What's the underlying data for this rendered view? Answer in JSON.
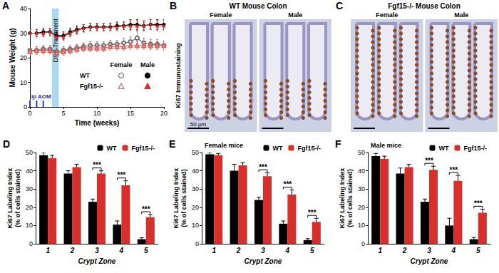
{
  "chart_data": [
    {
      "panel": "A",
      "type": "line",
      "xlabel": "Time (weeks)",
      "ylabel": "Mouse Weight (g)",
      "x": [
        0,
        1,
        2,
        3,
        4,
        5,
        6,
        7,
        8,
        9,
        10,
        11,
        12,
        13,
        14,
        15,
        16,
        17,
        18,
        19,
        20
      ],
      "xlim": [
        0,
        20
      ],
      "xticks": [
        0,
        5,
        10,
        15,
        20
      ],
      "ylim": [
        0,
        40
      ],
      "yticks": [
        0,
        10,
        20,
        30,
        40
      ],
      "grid": false,
      "legend_columns": [
        "Female",
        "Male"
      ],
      "legend_rows": [
        "WT",
        "Fgf15-/-"
      ],
      "series": [
        {
          "genotype": "WT",
          "sex": "Female",
          "color": "#6e6e6e",
          "marker": "open_circle",
          "values": [
            23,
            23,
            23.5,
            23.5,
            22.5,
            23,
            23.5,
            24,
            24.5,
            25,
            25,
            25,
            25.5,
            25.5,
            26,
            26.5,
            28,
            26,
            25.5,
            25.5,
            25
          ],
          "errors": [
            1.5,
            1.5,
            1.5,
            1.5,
            1.5,
            1.5,
            1.5,
            1.5,
            1.5,
            1.5,
            1.5,
            1.5,
            1.5,
            1.5,
            2,
            2,
            3,
            2,
            2,
            2,
            2
          ]
        },
        {
          "genotype": "WT",
          "sex": "Male",
          "color": "#000000",
          "marker": "circle",
          "values": [
            30,
            30,
            30.5,
            30.5,
            29,
            29,
            30.5,
            31.5,
            32,
            32.5,
            32.5,
            32.5,
            32.5,
            33,
            33,
            33.5,
            33.5,
            33,
            33.5,
            33.5,
            33.5
          ],
          "errors": [
            1.5,
            1.5,
            1.5,
            1.5,
            1.5,
            1.5,
            1.5,
            1.5,
            1.5,
            1.5,
            1.5,
            1.5,
            1.5,
            1.5,
            1.5,
            2,
            2,
            2,
            2,
            2,
            2
          ]
        },
        {
          "genotype": "Fgf15-/-",
          "sex": "Female",
          "color": "#e06060",
          "marker": "open_triangle",
          "values": [
            22.5,
            23,
            23,
            23,
            22,
            22.5,
            23,
            23.5,
            24,
            24,
            24,
            24,
            24.5,
            24.5,
            24.5,
            25,
            25,
            25,
            25,
            25,
            25
          ],
          "errors": [
            1.5,
            1.5,
            1.5,
            1.5,
            1.5,
            1.5,
            1.5,
            1.5,
            1.5,
            1.5,
            1.5,
            1.5,
            1.5,
            1.5,
            1.5,
            1.5,
            1.5,
            1.5,
            1.5,
            1.5,
            1.5
          ]
        },
        {
          "genotype": "Fgf15-/-",
          "sex": "Male",
          "color": "#d7302c",
          "marker": "triangle",
          "values": [
            30,
            30,
            30,
            30.5,
            28.5,
            28.5,
            30,
            31,
            32,
            32.5,
            32.5,
            32.5,
            32.5,
            32.5,
            33,
            33,
            33,
            33,
            33.5,
            33,
            33
          ],
          "errors": [
            1.5,
            1.5,
            1.5,
            1.5,
            1.5,
            1.5,
            1.5,
            1.5,
            1.5,
            1.5,
            1.5,
            1.5,
            1.5,
            1.5,
            1.5,
            2,
            2,
            2,
            2,
            2,
            2
          ]
        }
      ],
      "annotations": [
        {
          "text": "ip AOM",
          "x": [
            0,
            1,
            2
          ]
        },
        {
          "text": "DSS Treatment",
          "x": [
            3.3,
            4.3
          ]
        }
      ]
    },
    {
      "panel": "D",
      "type": "bar",
      "categories": [
        "1",
        "2",
        "3",
        "4",
        "5"
      ],
      "xlabel": "Crypt Zone",
      "ylabel": [
        "Ki67 Labeling Index",
        "(% of cells stained)"
      ],
      "ylim": [
        0,
        50
      ],
      "yticks": [
        0,
        10,
        20,
        30,
        40,
        50
      ],
      "grid": false,
      "legend": "top right",
      "series": [
        {
          "name": "WT",
          "color": "#000000",
          "values": [
            48.5,
            38.5,
            23,
            10.5,
            2.5
          ],
          "errors": [
            1.5,
            1.5,
            1.5,
            2,
            0.8
          ]
        },
        {
          "name": "Fgf15-/-",
          "color": "#d7302c",
          "values": [
            47,
            42,
            38.5,
            32,
            14.5
          ],
          "errors": [
            1.5,
            1.5,
            1.5,
            2.5,
            1.5
          ]
        }
      ],
      "significance": {
        "categories": [
          "3",
          "4",
          "5"
        ],
        "label": "***"
      }
    },
    {
      "panel": "E",
      "type": "bar",
      "subtitle": "Female mice",
      "categories": [
        "1",
        "2",
        "3",
        "4",
        "5"
      ],
      "xlabel": "Crypt Zone",
      "ylabel": [
        "Ki67 Labeling Index",
        "(% of cells stained)"
      ],
      "ylim": [
        0,
        50
      ],
      "yticks": [
        0,
        10,
        20,
        30,
        40,
        50
      ],
      "grid": false,
      "legend": "top right",
      "series": [
        {
          "name": "WT",
          "color": "#000000",
          "values": [
            49,
            40,
            24,
            11,
            2
          ],
          "errors": [
            1,
            3.5,
            1.5,
            1.5,
            0.8
          ]
        },
        {
          "name": "Fgf15-/-",
          "color": "#d7302c",
          "values": [
            48.5,
            43,
            37,
            27,
            12
          ],
          "errors": [
            1,
            1.5,
            2,
            2.5,
            2
          ]
        }
      ],
      "significance": {
        "categories": [
          "3",
          "4",
          "5"
        ],
        "label": "***"
      }
    },
    {
      "panel": "F",
      "type": "bar",
      "subtitle": "Male mice",
      "categories": [
        "1",
        "2",
        "3",
        "4",
        "5"
      ],
      "xlabel": "Crypt Zone",
      "ylabel": [
        "Ki67 Labeling Index",
        "(% of cells stained)"
      ],
      "ylim": [
        0,
        50
      ],
      "yticks": [
        0,
        10,
        20,
        30,
        40,
        50
      ],
      "grid": false,
      "legend": "top right",
      "series": [
        {
          "name": "WT",
          "color": "#000000",
          "values": [
            48,
            38.5,
            23,
            10,
            2.5
          ],
          "errors": [
            1.5,
            3,
            1.5,
            4,
            1
          ]
        },
        {
          "name": "Fgf15-/-",
          "color": "#d7302c",
          "values": [
            46.5,
            42,
            40.5,
            34.5,
            17
          ],
          "errors": [
            1.5,
            1.5,
            2,
            3,
            2
          ]
        }
      ],
      "significance": {
        "categories": [
          "3",
          "4",
          "5"
        ],
        "label": "***"
      }
    }
  ],
  "images": [
    {
      "panel": "B",
      "title": "WT Mouse Colon",
      "ylabel": "Ki67 Immunostaining",
      "labels": [
        "Female",
        "Male"
      ],
      "scale_bar": "50 μm"
    },
    {
      "panel": "C",
      "title": "Fgf15-/- Mouse Colon",
      "labels": [
        "Female",
        "Male"
      ]
    }
  ]
}
